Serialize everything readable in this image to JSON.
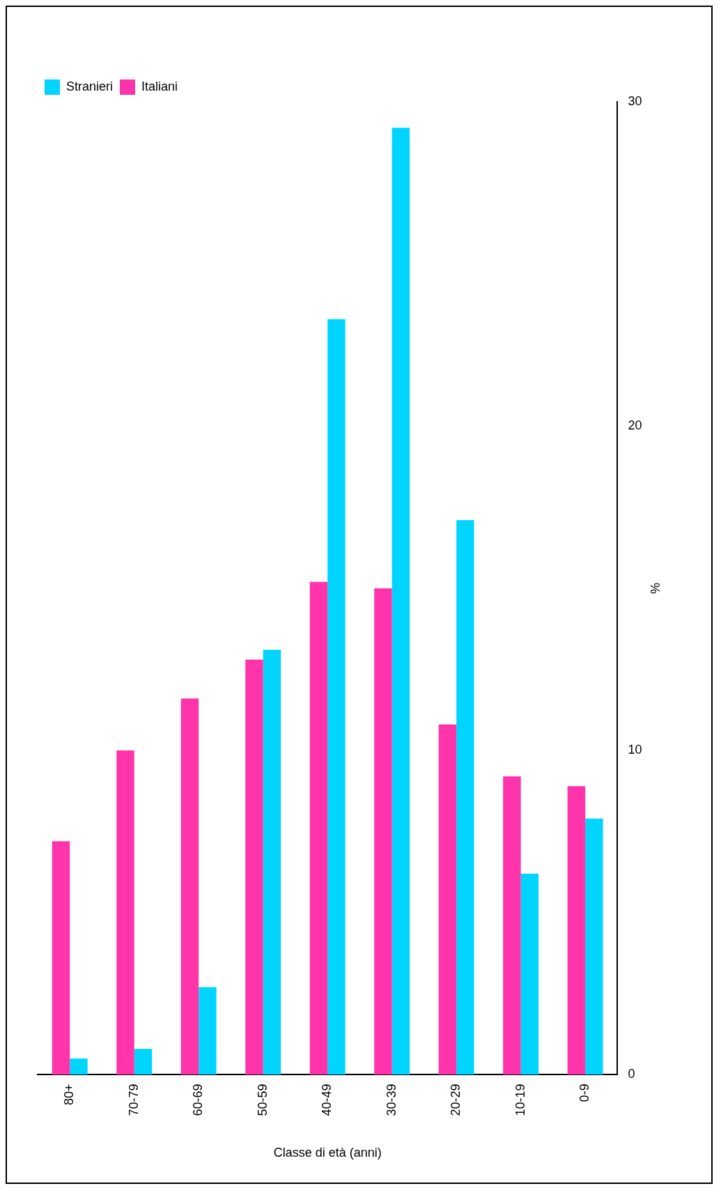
{
  "chart_data": {
    "type": "bar",
    "xlabel": "Classe di età (anni)",
    "ylabel": "%",
    "categories": [
      "80+",
      "70-79",
      "60-69",
      "50-59",
      "40-49",
      "30-39",
      "20-29",
      "10-19",
      "0-9"
    ],
    "series": [
      {
        "name": "Italiani",
        "color": "#ff33aa",
        "values": [
          7.2,
          10.0,
          11.6,
          12.8,
          15.2,
          15.0,
          10.8,
          9.2,
          8.9
        ]
      },
      {
        "name": "Stranieri",
        "color": "#00d5ff",
        "values": [
          0.5,
          0.8,
          2.7,
          13.1,
          23.3,
          29.2,
          17.1,
          6.2,
          7.9
        ]
      }
    ],
    "ylim": [
      0,
      30
    ],
    "yticks": [
      0,
      10,
      20,
      30
    ],
    "grid": false,
    "legend": "top left"
  }
}
